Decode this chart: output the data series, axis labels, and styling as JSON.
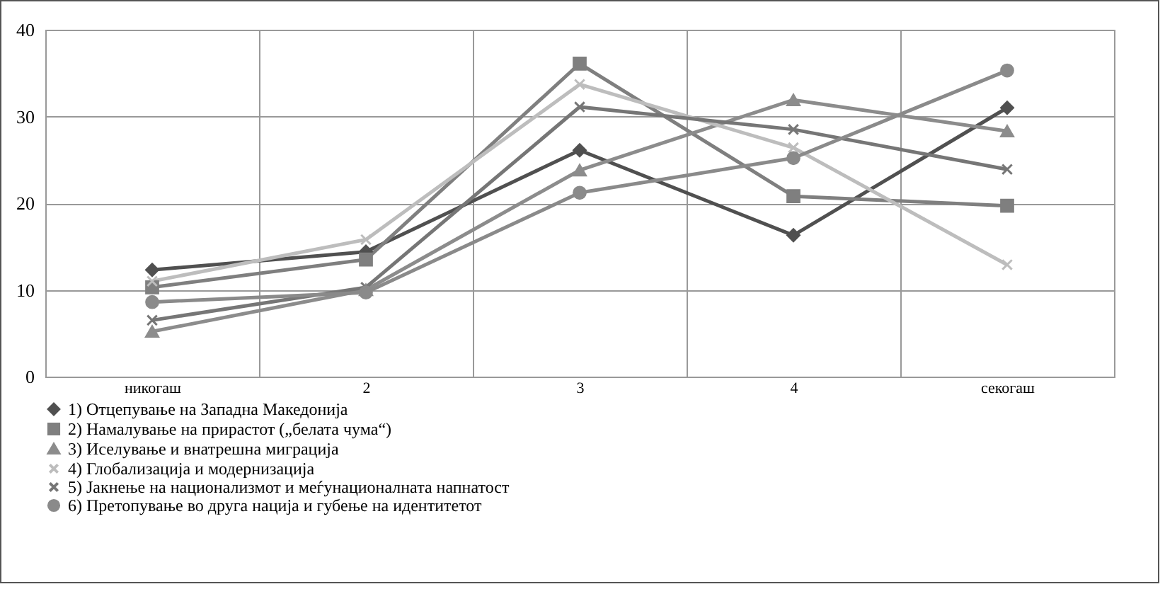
{
  "chart_data": {
    "type": "line",
    "categories": [
      "никогаш",
      "2",
      "3",
      "4",
      "секогаш"
    ],
    "series": [
      {
        "name": "1) Отцепување на Западна Македонија",
        "color": "#505050",
        "marker": "diamond",
        "values": [
          12.3,
          14.4,
          26.1,
          16.3,
          31
        ]
      },
      {
        "name": "2) Намалување на прирастот („белата чума“)",
        "color": "#7f7f7f",
        "marker": "square",
        "values": [
          10.3,
          13.5,
          36.1,
          20.8,
          19.7
        ]
      },
      {
        "name": "3) Иселување и внатрешна миграција",
        "color": "#8c8c8c",
        "marker": "triangle",
        "values": [
          5.2,
          10,
          23.8,
          31.9,
          28.3
        ]
      },
      {
        "name": "4) Глобализација  и модернизација",
        "color": "#bdbdbd",
        "marker": "cross",
        "values": [
          11,
          15.8,
          33.7,
          26.4,
          12.9
        ]
      },
      {
        "name": "5) Јакнење на национализмот  и меѓунационалната напнатост",
        "color": "#767676",
        "marker": "cross",
        "values": [
          6.5,
          10.3,
          31.1,
          28.5,
          23.9
        ]
      },
      {
        "name": "6) Претопување во друга нација  и губење на идентитетот",
        "color": "#8a8a8a",
        "marker": "circle",
        "values": [
          8.6,
          9.7,
          21.2,
          25.2,
          35.3
        ]
      }
    ],
    "ylim": [
      0,
      40
    ],
    "yticks": [
      0,
      10,
      20,
      30,
      40
    ],
    "grid": true,
    "legend": "bottom"
  }
}
